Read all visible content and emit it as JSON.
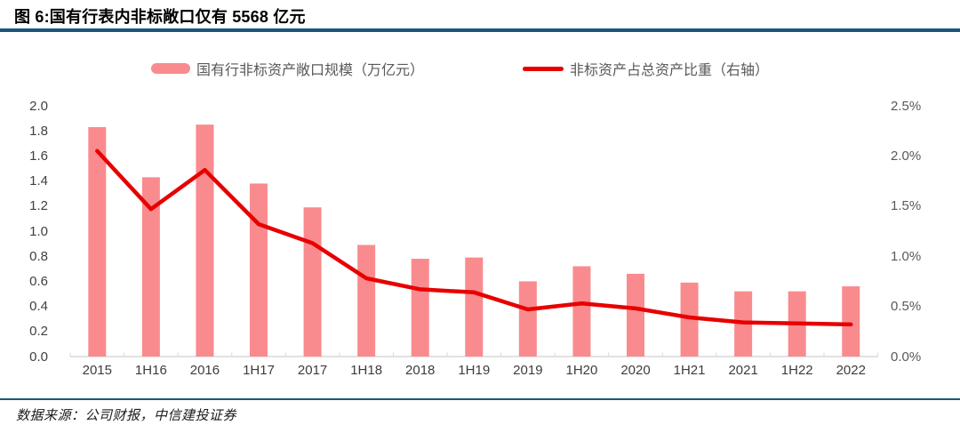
{
  "header": {
    "title": "图 6:国有行表内非标敞口仅有 5568 亿元"
  },
  "legend": {
    "bar_label": "国有行非标资产敞口规模（万亿元）",
    "line_label": "非标资产占总资产比重（右轴）"
  },
  "footer": {
    "source": "数据来源：公司财报，中信建投证券"
  },
  "colors": {
    "bar": "#f98b8e",
    "line": "#e80000",
    "rule": "#1a567d",
    "axis": "#d9d9d9"
  },
  "chart_data": {
    "type": "bar+line",
    "title": "图 6:国有行表内非标敞口仅有 5568 亿元",
    "categories": [
      "2015",
      "1H16",
      "2016",
      "1H17",
      "2017",
      "1H18",
      "2018",
      "1H19",
      "2019",
      "1H20",
      "2020",
      "1H21",
      "2021",
      "1H22",
      "2022"
    ],
    "series": [
      {
        "name": "国有行非标资产敞口规模（万亿元）",
        "type": "bar",
        "axis": "left",
        "color": "#f98b8e",
        "values": [
          1.83,
          1.43,
          1.85,
          1.38,
          1.19,
          0.89,
          0.78,
          0.79,
          0.6,
          0.72,
          0.66,
          0.59,
          0.52,
          0.52,
          0.56
        ]
      },
      {
        "name": "非标资产占总资产比重（右轴）",
        "type": "line",
        "axis": "right",
        "color": "#e80000",
        "values": [
          2.05,
          1.47,
          1.86,
          1.32,
          1.13,
          0.78,
          0.67,
          0.64,
          0.47,
          0.53,
          0.48,
          0.39,
          0.34,
          0.33,
          0.32
        ]
      }
    ],
    "left_axis": {
      "range": [
        0,
        2.0
      ],
      "ticks": [
        "0.0",
        "0.2",
        "0.4",
        "0.6",
        "0.8",
        "1.0",
        "1.2",
        "1.4",
        "1.6",
        "1.8",
        "2.0"
      ]
    },
    "right_axis": {
      "range_percent": [
        0,
        2.5
      ],
      "ticks": [
        "0.0%",
        "0.5%",
        "1.0%",
        "1.5%",
        "2.0%",
        "2.5%"
      ]
    },
    "grid": false,
    "legend_position": "top"
  }
}
